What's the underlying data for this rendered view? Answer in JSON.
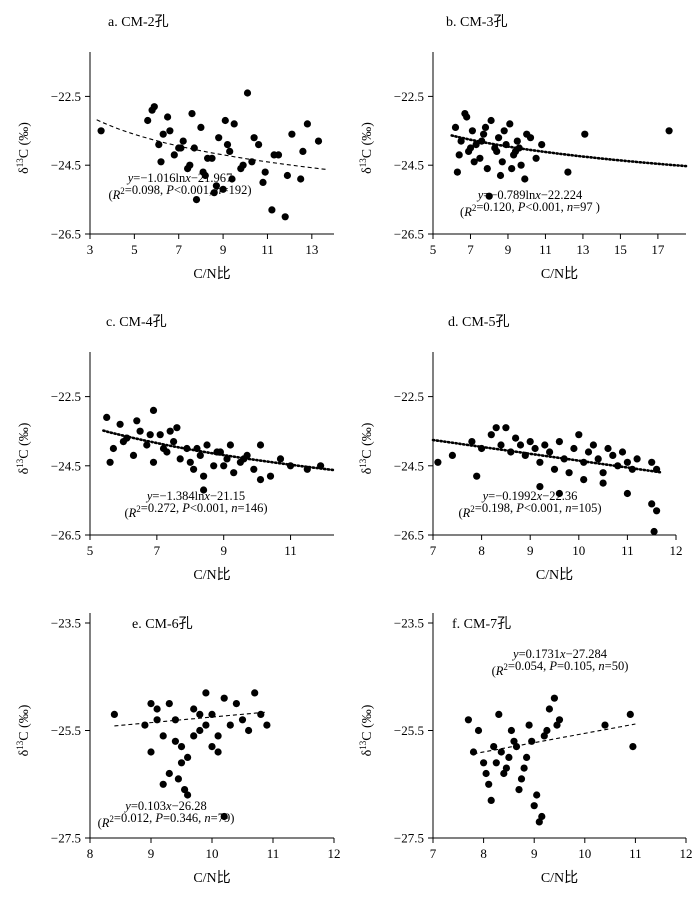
{
  "chart_data": [
    {
      "type": "scatter",
      "panel": "a",
      "title": "a. CM-2孔",
      "xlabel": "C/N比",
      "ylabel": "δ13C (‰)",
      "xlim": [
        3,
        14
      ],
      "ylim": [
        -26.5,
        -21.5
      ],
      "xticks": [
        3,
        5,
        7,
        9,
        11,
        13
      ],
      "yticks": [
        -22.5,
        -24.5,
        -26.5
      ],
      "equation": "y=−1.016lnx−21.967",
      "stats": "(R2=0.098, P<0.001, n=192)",
      "trend": {
        "model": "log",
        "a": -1.016,
        "b": -21.967,
        "x": [
          3.3,
          13.7
        ],
        "style": "dashed"
      },
      "x": [
        3.5,
        5.6,
        5.9,
        6.1,
        6.3,
        6.5,
        6.8,
        7.2,
        7.5,
        7.7,
        8.0,
        8.2,
        8.5,
        8.8,
        9.0,
        9.3,
        9.5,
        9.8,
        10.1,
        10.3,
        10.6,
        10.9,
        11.2,
        11.5,
        11.8,
        12.1,
        12.5,
        12.8,
        13.3,
        5.8,
        6.2,
        6.6,
        7.0,
        7.4,
        7.8,
        8.3,
        8.7,
        9.1,
        9.4,
        9.9,
        10.4,
        10.8,
        11.3,
        11.9,
        12.6,
        7.1,
        7.6,
        8.1,
        8.6,
        9.2
      ],
      "y": [
        -23.5,
        -23.2,
        -22.8,
        -23.9,
        -23.6,
        -23.1,
        -24.2,
        -23.8,
        -24.5,
        -24.0,
        -23.4,
        -24.8,
        -24.3,
        -23.7,
        -25.2,
        -24.1,
        -23.3,
        -24.6,
        -22.4,
        -24.4,
        -23.9,
        -24.7,
        -25.8,
        -24.2,
        -26.0,
        -23.6,
        -24.9,
        -23.3,
        -23.8,
        -22.9,
        -24.4,
        -23.5,
        -24.0,
        -24.6,
        -25.5,
        -24.3,
        -25.1,
        -23.2,
        -24.9,
        -24.5,
        -23.7,
        -25.0,
        -24.2,
        -24.8,
        -24.1,
        -24.0,
        -23.0,
        -24.7,
        -25.3,
        -23.9
      ]
    },
    {
      "type": "scatter",
      "panel": "b",
      "title": "b. CM-3孔",
      "xlabel": "C/N比",
      "ylabel": "δ13C (‰)",
      "xlim": [
        5,
        18.5
      ],
      "ylim": [
        -26.5,
        -21.5
      ],
      "xticks": [
        5,
        7,
        9,
        11,
        13,
        15,
        17
      ],
      "yticks": [
        -22.5,
        -24.5,
        -26.5
      ],
      "equation": "y=−0.789lnx−22.224",
      "stats": "(R2=0.120, P<0.001, n=97 )",
      "trend": {
        "model": "log",
        "a": -0.789,
        "b": -22.224,
        "x": [
          6.0,
          18.5
        ],
        "style": "dotted"
      },
      "x": [
        6.2,
        6.5,
        6.7,
        6.9,
        7.1,
        7.3,
        7.5,
        7.7,
        7.9,
        8.1,
        8.3,
        8.5,
        8.7,
        8.9,
        9.1,
        9.3,
        9.5,
        9.7,
        9.9,
        10.2,
        10.5,
        10.8,
        6.4,
        6.8,
        7.2,
        7.6,
        8.0,
        8.4,
        8.8,
        9.2,
        9.6,
        10.0,
        7.0,
        7.8,
        8.6,
        9.4,
        12.2,
        13.1,
        17.6,
        6.3
      ],
      "y": [
        -23.4,
        -23.8,
        -23.0,
        -24.1,
        -23.5,
        -23.9,
        -24.3,
        -23.6,
        -24.6,
        -23.2,
        -24.0,
        -23.7,
        -24.4,
        -23.9,
        -23.3,
        -24.2,
        -23.8,
        -24.5,
        -24.9,
        -23.7,
        -24.3,
        -23.9,
        -24.2,
        -23.1,
        -24.4,
        -23.8,
        -25.4,
        -24.1,
        -23.5,
        -24.6,
        -24.0,
        -23.6,
        -24.0,
        -23.4,
        -24.8,
        -24.1,
        -24.7,
        -23.6,
        -23.5,
        -24.7
      ]
    },
    {
      "type": "scatter",
      "panel": "c",
      "title": "c. CM-4孔",
      "xlabel": "C/N比",
      "ylabel": "δ13C (‰)",
      "xlim": [
        5,
        12.3
      ],
      "ylim": [
        -26.5,
        -21.5
      ],
      "xticks": [
        5,
        7,
        9,
        11
      ],
      "yticks": [
        -22.5,
        -24.5,
        -26.5
      ],
      "equation": "y=−1.384lnx−21.15",
      "stats": "(R2=0.272, P<0.001, n=146)",
      "trend": {
        "model": "log",
        "a": -1.384,
        "b": -21.15,
        "x": [
          5.4,
          12.3
        ],
        "style": "dotted"
      },
      "x": [
        5.5,
        5.7,
        5.9,
        6.1,
        6.3,
        6.5,
        6.7,
        6.9,
        7.1,
        7.3,
        7.5,
        7.7,
        7.9,
        8.1,
        8.3,
        8.5,
        8.7,
        8.9,
        9.1,
        9.3,
        9.5,
        9.7,
        9.9,
        10.1,
        10.4,
        10.7,
        11.0,
        11.5,
        11.9,
        6.0,
        6.4,
        6.8,
        7.2,
        7.6,
        8.0,
        8.4,
        8.8,
        9.2,
        9.6,
        8.4,
        6.9,
        7.4,
        8.2,
        9.0,
        5.6,
        10.1
      ],
      "y": [
        -23.1,
        -24.0,
        -23.3,
        -23.7,
        -24.2,
        -23.5,
        -23.9,
        -24.4,
        -23.6,
        -24.1,
        -23.8,
        -24.3,
        -24.0,
        -24.6,
        -24.2,
        -23.9,
        -24.5,
        -24.1,
        -24.3,
        -24.7,
        -24.4,
        -24.2,
        -24.6,
        -23.9,
        -24.8,
        -24.3,
        -24.5,
        -24.6,
        -24.5,
        -23.8,
        -23.2,
        -23.6,
        -24.0,
        -23.4,
        -24.4,
        -24.8,
        -24.1,
        -23.9,
        -24.3,
        -25.2,
        -22.9,
        -23.5,
        -24.0,
        -24.5,
        -24.4,
        -24.9
      ]
    },
    {
      "type": "scatter",
      "panel": "d",
      "title": "d. CM-5孔",
      "xlabel": "C/N比",
      "ylabel": "δ13C (‰)",
      "xlim": [
        7,
        12
      ],
      "ylim": [
        -26.5,
        -21.5
      ],
      "xticks": [
        7,
        8,
        9,
        10,
        11,
        12
      ],
      "yticks": [
        -22.5,
        -24.5,
        -26.5
      ],
      "equation": "y=−0.1992x−22.36",
      "stats": "(R2=0.198, P<0.001, n=105)",
      "trend": {
        "model": "linear",
        "a": -0.1992,
        "b": -22.36,
        "x": [
          7.0,
          11.7
        ],
        "style": "dotted"
      },
      "x": [
        7.1,
        7.4,
        7.8,
        8.0,
        8.2,
        8.4,
        8.5,
        8.6,
        8.7,
        8.8,
        8.9,
        9.0,
        9.1,
        9.2,
        9.3,
        9.4,
        9.5,
        9.6,
        9.7,
        9.8,
        9.9,
        10.0,
        10.1,
        10.2,
        10.3,
        10.4,
        10.5,
        10.6,
        10.7,
        10.8,
        10.9,
        11.0,
        11.1,
        11.2,
        11.5,
        11.6,
        7.9,
        9.2,
        9.6,
        10.1,
        10.5,
        11.0,
        11.5,
        11.55,
        11.6,
        8.3
      ],
      "y": [
        -24.4,
        -24.2,
        -23.8,
        -24.0,
        -23.6,
        -23.9,
        -23.4,
        -24.1,
        -23.7,
        -23.9,
        -24.2,
        -23.8,
        -24.0,
        -24.4,
        -23.9,
        -24.1,
        -24.6,
        -23.8,
        -24.3,
        -24.7,
        -24.0,
        -23.6,
        -24.4,
        -24.1,
        -23.9,
        -24.3,
        -24.7,
        -24.0,
        -24.2,
        -24.5,
        -24.1,
        -24.4,
        -24.6,
        -24.3,
        -24.4,
        -24.6,
        -24.8,
        -25.1,
        -25.3,
        -24.9,
        -25.0,
        -25.3,
        -25.6,
        -26.4,
        -25.8,
        -23.4
      ]
    },
    {
      "type": "scatter",
      "panel": "e",
      "title": "e. CM-6孔",
      "xlabel": "C/N比",
      "ylabel": "δ13C (‰)",
      "xlim": [
        8,
        12
      ],
      "ylim": [
        -27.5,
        -23.5
      ],
      "xticks": [
        8,
        9,
        10,
        11,
        12
      ],
      "yticks": [
        -23.5,
        -25.5,
        -27.5
      ],
      "equation": "y=0.103x−26.28",
      "stats": "(R2=0.012, P=0.346, n=79)",
      "trend": {
        "model": "linear",
        "a": 0.103,
        "b": -26.28,
        "x": [
          8.4,
          10.9
        ],
        "style": "dashed"
      },
      "x": [
        8.4,
        8.9,
        9.0,
        9.1,
        9.2,
        9.3,
        9.4,
        9.5,
        9.6,
        9.7,
        9.8,
        9.9,
        10.0,
        10.1,
        10.2,
        10.3,
        10.4,
        10.5,
        10.6,
        10.7,
        10.8,
        10.9,
        9.0,
        9.2,
        9.4,
        9.6,
        9.8,
        10.0,
        9.1,
        9.3,
        9.5,
        9.7,
        9.9,
        10.1,
        9.55,
        10.2,
        9.45
      ],
      "y": [
        -25.2,
        -25.4,
        -25.9,
        -25.1,
        -25.6,
        -26.3,
        -25.3,
        -25.8,
        -26.0,
        -25.1,
        -25.5,
        -24.8,
        -25.2,
        -25.6,
        -24.9,
        -25.4,
        -25.0,
        -25.3,
        -25.5,
        -24.8,
        -25.2,
        -25.4,
        -25.0,
        -26.5,
        -25.7,
        -26.7,
        -25.2,
        -25.8,
        -25.3,
        -25.0,
        -26.1,
        -25.6,
        -25.4,
        -25.9,
        -26.6,
        -27.1,
        -26.4
      ]
    },
    {
      "type": "scatter",
      "panel": "f",
      "title": "f. CM-7孔",
      "xlabel": "C/N比",
      "ylabel": "δ13C (‰)",
      "xlim": [
        7,
        12
      ],
      "ylim": [
        -27.5,
        -23.5
      ],
      "xticks": [
        7,
        8,
        9,
        10,
        11,
        12
      ],
      "yticks": [
        -23.5,
        -25.5,
        -27.5
      ],
      "equation": "y=0.1731x−27.284",
      "stats": "(R2=0.054, P=0.105, n=50)",
      "trend": {
        "model": "linear",
        "a": 0.1731,
        "b": -27.284,
        "x": [
          7.8,
          11.0
        ],
        "style": "dashed"
      },
      "x": [
        7.7,
        7.8,
        7.9,
        8.0,
        8.1,
        8.2,
        8.3,
        8.4,
        8.5,
        8.6,
        8.7,
        8.8,
        8.9,
        9.0,
        9.1,
        9.2,
        9.3,
        9.4,
        9.5,
        10.4,
        10.9,
        10.95,
        8.15,
        8.35,
        8.55,
        8.75,
        8.95,
        9.15,
        8.45,
        8.65,
        9.05,
        8.25,
        9.25,
        8.05,
        8.85,
        9.45
      ],
      "y": [
        -25.3,
        -25.9,
        -25.5,
        -26.1,
        -26.5,
        -25.8,
        -25.2,
        -26.3,
        -26.0,
        -25.7,
        -26.6,
        -26.2,
        -25.4,
        -26.9,
        -27.2,
        -25.6,
        -25.1,
        -24.9,
        -25.3,
        -25.4,
        -25.2,
        -25.8,
        -26.8,
        -25.9,
        -25.5,
        -26.4,
        -25.7,
        -27.1,
        -26.2,
        -25.8,
        -26.7,
        -26.1,
        -25.5,
        -26.3,
        -26.0,
        -25.4
      ]
    }
  ]
}
